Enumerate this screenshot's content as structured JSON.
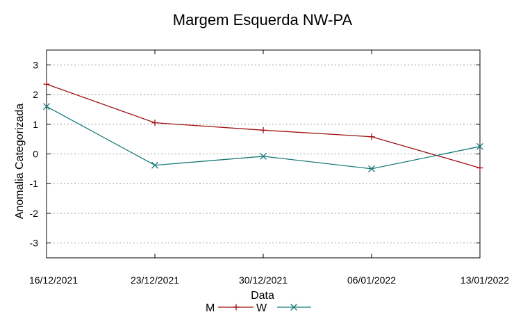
{
  "chart_data": {
    "type": "line",
    "title": "Margem Esquerda NW-PA",
    "xlabel": "Data",
    "ylabel": "Anomalia Categorizada",
    "categories": [
      "16/12/2021",
      "23/12/2021",
      "30/12/2021",
      "06/01/2022",
      "13/01/2022"
    ],
    "ylim": [
      -3.5,
      3.5
    ],
    "yticks": [
      "3",
      "2",
      "1",
      "0",
      "-1",
      "-2",
      "-3"
    ],
    "grid": true,
    "legend": "bottom",
    "series": [
      {
        "name": "M",
        "color": "#a01010",
        "marker": "plus",
        "values": [
          2.35,
          1.05,
          0.8,
          0.58,
          -0.47
        ]
      },
      {
        "name": "W",
        "color": "#1a7a7a",
        "marker": "x",
        "values": [
          1.6,
          -0.38,
          -0.08,
          -0.5,
          0.25
        ]
      }
    ]
  }
}
